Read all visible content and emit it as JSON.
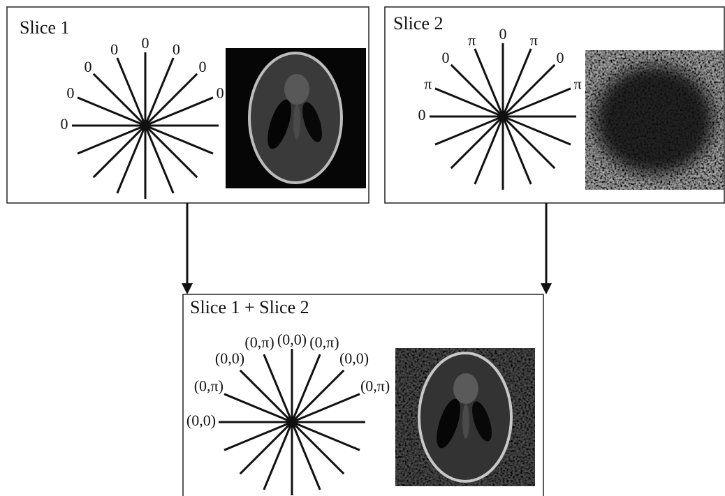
{
  "panels": [
    {
      "title": "Slice 1",
      "spoke_labels": [
        "0",
        "0",
        "0",
        "0",
        "0",
        "0",
        "0",
        "0"
      ]
    },
    {
      "title": "Slice 2",
      "spoke_labels": [
        "0",
        "π",
        "0",
        "π",
        "0",
        "π",
        "0",
        "π"
      ]
    },
    {
      "title": "Slice 1 + Slice 2",
      "spoke_labels": [
        "(0,0)",
        "(0,π)",
        "(0,0)",
        "(0,π)",
        "(0,0)",
        "(0,π)",
        "(0,0)",
        "(0,π)"
      ]
    }
  ]
}
